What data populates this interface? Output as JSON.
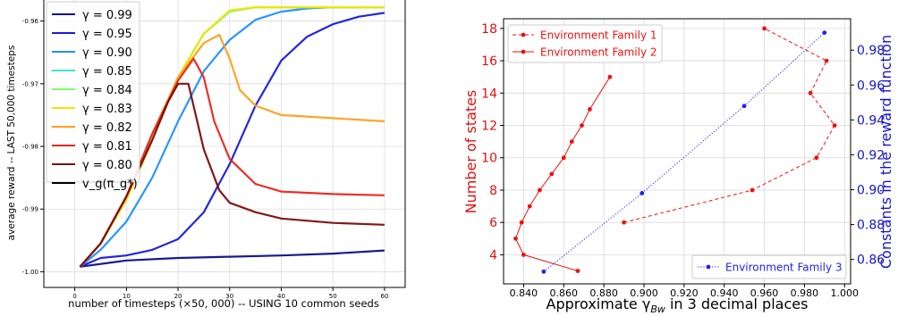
{
  "chart_data": [
    {
      "type": "line",
      "title": "",
      "xlabel": "number of timesteps (×50, 000) -- USING 10 common seeds",
      "ylabel": "average reward -- LAST 50,000 timesteps",
      "xlim": [
        -6,
        64
      ],
      "ylim": [
        -1.0025,
        -0.9565
      ],
      "xticks": [
        "0",
        "10",
        "20",
        "30",
        "40",
        "50",
        "60"
      ],
      "yticks": [
        "-1.00",
        "-0.99",
        "-0.98",
        "-0.97",
        "-0.96"
      ],
      "grid": true,
      "legend_position": "top-left",
      "series": [
        {
          "name": "γ = 0.99",
          "color": "#0d0d8a",
          "x": [
            1,
            10,
            20,
            30,
            40,
            50,
            60
          ],
          "y": [
            -0.9992,
            -0.9982,
            -0.9978,
            -0.9976,
            -0.9974,
            -0.9971,
            -0.9966
          ]
        },
        {
          "name": "γ = 0.95",
          "color": "#1a1adb",
          "x": [
            1,
            5,
            10,
            15,
            20,
            25,
            30,
            35,
            40,
            45,
            50,
            55,
            60
          ],
          "y": [
            -0.9992,
            -0.9978,
            -0.9974,
            -0.9965,
            -0.9948,
            -0.9905,
            -0.9828,
            -0.9735,
            -0.9663,
            -0.9625,
            -0.9605,
            -0.9593,
            -0.9587
          ]
        },
        {
          "name": "γ = 0.90",
          "color": "#1e90ff",
          "x": [
            1,
            5,
            10,
            15,
            20,
            25,
            30,
            35,
            40,
            45,
            50,
            55,
            60
          ],
          "y": [
            -0.9992,
            -0.9965,
            -0.992,
            -0.985,
            -0.976,
            -0.968,
            -0.963,
            -0.9598,
            -0.9585,
            -0.958,
            -0.9578,
            -0.9578,
            -0.9578
          ]
        },
        {
          "name": "γ = 0.85",
          "color": "#40e0d0",
          "x": [
            1,
            5,
            10,
            15,
            20,
            25,
            30,
            35,
            40,
            50,
            60
          ],
          "y": [
            -0.9992,
            -0.9955,
            -0.9885,
            -0.979,
            -0.969,
            -0.962,
            -0.9585,
            -0.9578,
            -0.9578,
            -0.9578,
            -0.9578
          ]
        },
        {
          "name": "γ = 0.84",
          "color": "#7cfc6a",
          "x": [
            1,
            5,
            10,
            15,
            20,
            25,
            30,
            35,
            40,
            50,
            60
          ],
          "y": [
            -0.9992,
            -0.9955,
            -0.9885,
            -0.979,
            -0.969,
            -0.962,
            -0.9585,
            -0.9578,
            -0.9578,
            -0.9578,
            -0.9578
          ]
        },
        {
          "name": "γ = 0.83",
          "color": "#f2e600",
          "x": [
            1,
            5,
            10,
            15,
            20,
            25,
            30,
            35,
            40,
            50,
            60
          ],
          "y": [
            -0.9992,
            -0.9955,
            -0.9885,
            -0.979,
            -0.969,
            -0.962,
            -0.9583,
            -0.9578,
            -0.9578,
            -0.9578,
            -0.9578
          ]
        },
        {
          "name": "γ = 0.82",
          "color": "#ff9f1c",
          "x": [
            1,
            5,
            10,
            15,
            20,
            25,
            28,
            30,
            32,
            35,
            40,
            50,
            60
          ],
          "y": [
            -0.9992,
            -0.9955,
            -0.988,
            -0.978,
            -0.969,
            -0.9635,
            -0.9622,
            -0.966,
            -0.971,
            -0.9735,
            -0.975,
            -0.9755,
            -0.976
          ]
        },
        {
          "name": "γ = 0.81",
          "color": "#e8261c",
          "x": [
            1,
            5,
            10,
            15,
            20,
            23,
            25,
            27,
            30,
            35,
            40,
            50,
            60
          ],
          "y": [
            -0.9992,
            -0.9955,
            -0.988,
            -0.978,
            -0.9695,
            -0.966,
            -0.969,
            -0.976,
            -0.982,
            -0.986,
            -0.9872,
            -0.9876,
            -0.9878
          ]
        },
        {
          "name": "γ = 0.80",
          "color": "#7a0c0c",
          "x": [
            1,
            5,
            10,
            15,
            18,
            20,
            22,
            25,
            28,
            30,
            35,
            40,
            50,
            60
          ],
          "y": [
            -0.9992,
            -0.9955,
            -0.988,
            -0.979,
            -0.973,
            -0.97,
            -0.97,
            -0.9805,
            -0.987,
            -0.989,
            -0.9905,
            -0.9915,
            -0.9922,
            -0.9925
          ]
        },
        {
          "name": "v_g(π_g*)",
          "color": "#000000",
          "x": [
            -6,
            63
          ],
          "y": [
            -0.9565,
            -0.9565
          ]
        }
      ]
    },
    {
      "type": "line",
      "title": "",
      "xlabel": "Approximate γ_Bw in 3 decimal places",
      "ylabel": "Number of states",
      "y2label": "Constants in the reward function",
      "xlim": [
        0.83,
        1.003
      ],
      "ylim": [
        2.2,
        18.6
      ],
      "y2lim": [
        0.846,
        0.998
      ],
      "xticks": [
        "0.840",
        "0.860",
        "0.880",
        "0.900",
        "0.920",
        "0.940",
        "0.960",
        "0.980",
        "1.000"
      ],
      "yticks": [
        "4",
        "6",
        "8",
        "10",
        "12",
        "14",
        "16",
        "18"
      ],
      "y2ticks": [
        "0.86",
        "0.88",
        "0.90",
        "0.92",
        "0.94",
        "0.96",
        "0.98"
      ],
      "grid": true,
      "legend_position": "top-left",
      "series": [
        {
          "name": "Environment Family 1",
          "color": "#ee1111",
          "axis": "left",
          "style": "dashed",
          "x": [
            0.89,
            0.954,
            0.986,
            0.995,
            0.983,
            0.991,
            0.96
          ],
          "y": [
            6,
            8,
            10,
            12,
            14,
            16,
            18
          ]
        },
        {
          "name": "Environment Family 2",
          "color": "#ee1111",
          "axis": "left",
          "style": "solid",
          "x": [
            0.867,
            0.84,
            0.836,
            0.839,
            0.843,
            0.848,
            0.854,
            0.86,
            0.864,
            0.869,
            0.873,
            0.883
          ],
          "y": [
            3,
            4,
            5,
            6,
            7,
            8,
            9,
            10,
            11,
            12,
            13,
            15
          ]
        },
        {
          "name": "Environment Family 3",
          "color": "#2222ee",
          "axis": "right",
          "style": "dotted",
          "x": [
            0.85,
            0.899,
            0.95,
            0.99
          ],
          "y": [
            0.853,
            0.898,
            0.948,
            0.99
          ]
        }
      ]
    }
  ]
}
